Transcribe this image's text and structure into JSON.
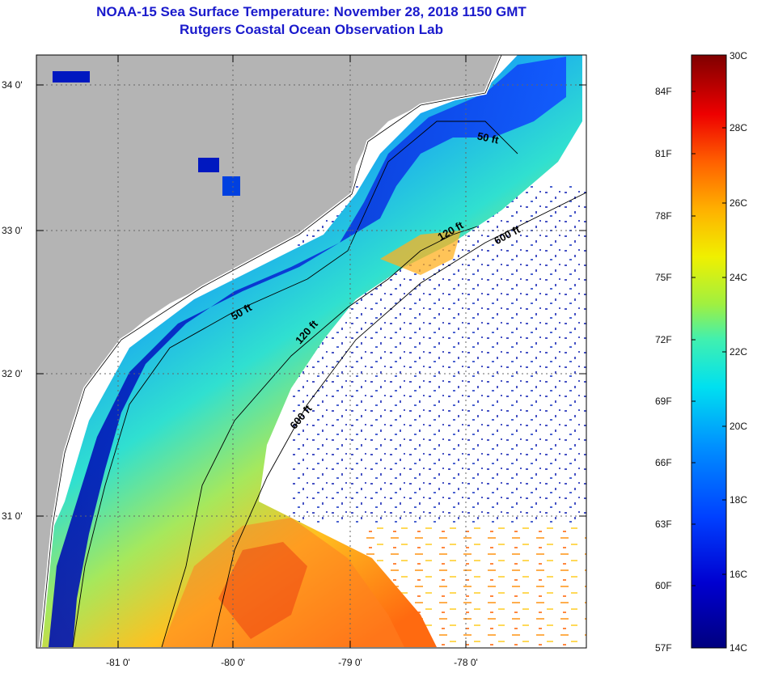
{
  "header": {
    "title": "NOAA-15 Sea Surface Temperature:  November 28, 2018 1150 GMT",
    "subtitle": "Rutgers Coastal Ocean Observation Lab"
  },
  "axes": {
    "lat_labels": [
      "34 0'",
      "33 0'",
      "32 0'",
      "31 0'"
    ],
    "lon_labels": [
      "-81 0'",
      "-80 0'",
      "-79 0'",
      "-78 0'"
    ]
  },
  "colorbar": {
    "fahrenheit_labels": [
      "84F",
      "81F",
      "78F",
      "75F",
      "72F",
      "69F",
      "66F",
      "63F",
      "60F",
      "57F"
    ],
    "celsius_labels": [
      "30C",
      "28C",
      "26C",
      "24C",
      "22C",
      "20C",
      "18C",
      "16C",
      "14C"
    ]
  },
  "contours": {
    "labels": [
      "50 ft",
      "120 ft",
      "600 ft",
      "50 ft",
      "120 ft",
      "600 ft"
    ]
  },
  "colors": {
    "land": "#b4b4b4",
    "no_data": "#ffffff",
    "title": "#1a1acc"
  }
}
